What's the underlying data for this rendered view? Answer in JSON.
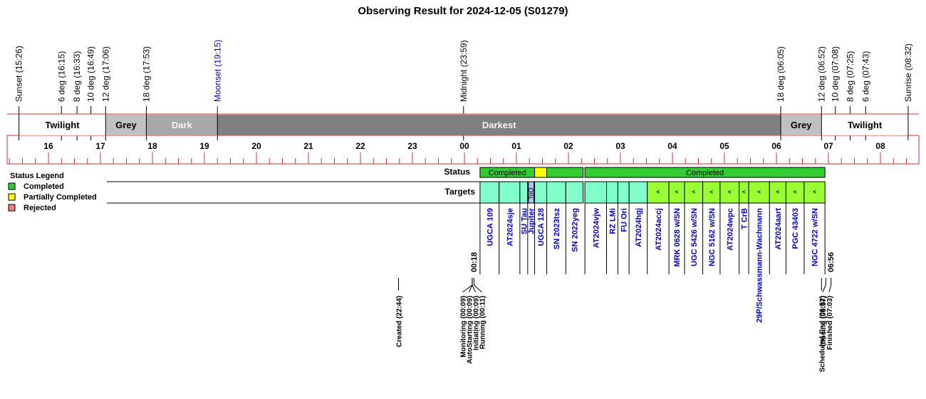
{
  "title": "Observing Result for 2024-12-05 (S01279)",
  "colors": {
    "rule": "#cc3333",
    "twilight": "#ffffff",
    "grey": "#c0c0c0",
    "dark": "#a8a8a8",
    "darkest": "#808080",
    "completed": "#33cc33",
    "partial": "#ffff00",
    "rejected": "#f08080",
    "target_cell": "#80ffcc",
    "target_alt": "#99ff33",
    "too_cell": "#a0c8ff",
    "moon": "#0000cc",
    "target_text": "#0000cc"
  },
  "legend": {
    "title": "Status Legend",
    "items": [
      {
        "label": "Completed",
        "color": "#33cc33"
      },
      {
        "label": "Partially Completed",
        "color": "#ffff00"
      },
      {
        "label": "Rejected",
        "color": "#f08080"
      }
    ]
  },
  "row_labels": {
    "status": "Status",
    "targets": "Targets"
  },
  "chart_data": {
    "type": "timeline",
    "x_start": "15:26",
    "x_end": "08:44",
    "hour_ticks": [
      "16",
      "17",
      "18",
      "19",
      "20",
      "21",
      "22",
      "23",
      "00",
      "01",
      "02",
      "03",
      "04",
      "05",
      "06",
      "07",
      "08"
    ],
    "events": [
      {
        "label": "Sunset (15:26)",
        "time": "15:26"
      },
      {
        "label": "6 deg (16:15)",
        "time": "16:15"
      },
      {
        "label": "8 deg (16:33)",
        "time": "16:33"
      },
      {
        "label": "10 deg (16:49)",
        "time": "16:49"
      },
      {
        "label": "12 deg (17:06)",
        "time": "17:06"
      },
      {
        "label": "18 deg (17:53)",
        "time": "17:53"
      },
      {
        "label": "Moonset (19:15)",
        "time": "19:15",
        "moon": true
      },
      {
        "label": "Midnight (23:59)",
        "time": "23:59"
      },
      {
        "label": "18 deg (06:05)",
        "time": "06:05"
      },
      {
        "label": "12 deg (06:52)",
        "time": "06:52"
      },
      {
        "label": "10 deg (07:08)",
        "time": "07:08"
      },
      {
        "label": "8 deg (07:25)",
        "time": "07:25"
      },
      {
        "label": "6 deg (07:43)",
        "time": "07:43"
      },
      {
        "label": "Sunrise (08:32)",
        "time": "08:32"
      }
    ],
    "sky_bands": [
      {
        "label": "Twilight",
        "start": "15:26",
        "end": "17:06",
        "kind": "twilight"
      },
      {
        "label": "Grey",
        "start": "17:06",
        "end": "17:53",
        "kind": "grey"
      },
      {
        "label": "Dark",
        "start": "17:53",
        "end": "19:15",
        "kind": "dark"
      },
      {
        "label": "Darkest",
        "start": "19:15",
        "end": "06:05",
        "kind": "darkest"
      },
      {
        "label": "Grey",
        "start": "06:05",
        "end": "06:52",
        "kind": "grey"
      },
      {
        "label": "Twilight",
        "start": "06:52",
        "end": "08:32",
        "kind": "twilight"
      }
    ],
    "status_segments": [
      {
        "start": "00:18",
        "end": "01:21",
        "status": "Completed",
        "label": "Completed"
      },
      {
        "start": "01:21",
        "end": "01:35",
        "status": "Partially Completed",
        "label": ""
      },
      {
        "start": "01:35",
        "end": "02:17",
        "status": "Completed",
        "label": ""
      },
      {
        "start": "02:19",
        "end": "06:56",
        "status": "Completed",
        "label": "Completed"
      }
    ],
    "targets": [
      {
        "name": "UGCA 109",
        "start": "00:18",
        "end": "00:40"
      },
      {
        "name": "AT2024sje",
        "start": "00:40",
        "end": "01:04"
      },
      {
        "name": "SU Tau",
        "start": "01:04",
        "end": "01:13"
      },
      {
        "name": "Jupiter",
        "start": "01:13",
        "end": "01:21",
        "too": true,
        "badge": "ToO"
      },
      {
        "name": "UGCA 128",
        "start": "01:21",
        "end": "01:35"
      },
      {
        "name": "SN 2023tsz",
        "start": "01:35",
        "end": "01:57"
      },
      {
        "name": "SN 2022yeg",
        "start": "01:57",
        "end": "02:17"
      },
      {
        "name": "AT2024vjw",
        "start": "02:19",
        "end": "02:44"
      },
      {
        "name": "RZ LMi",
        "start": "02:44",
        "end": "02:57"
      },
      {
        "name": "FU Ori",
        "start": "02:57",
        "end": "03:10"
      },
      {
        "name": "AT2024hgj",
        "start": "03:10",
        "end": "03:31"
      },
      {
        "name": "AT2024accj",
        "start": "03:31",
        "end": "03:56",
        "alt": true
      },
      {
        "name": "MRK 0628 w/SN",
        "start": "03:56",
        "end": "04:14",
        "alt": true
      },
      {
        "name": "UGC 5426 w/SN",
        "start": "04:14",
        "end": "04:35",
        "alt": true
      },
      {
        "name": "NGC 5162 w/SN",
        "start": "04:35",
        "end": "04:55",
        "alt": true
      },
      {
        "name": "AT2024wpc",
        "start": "04:55",
        "end": "05:17",
        "alt": true
      },
      {
        "name": "T CrB",
        "start": "05:17",
        "end": "05:28",
        "alt": true
      },
      {
        "name": "29P/Schwassmann-Wachmann",
        "start": "05:28",
        "end": "05:52",
        "alt": true
      },
      {
        "name": "AT2024aart",
        "start": "05:52",
        "end": "06:11",
        "alt": true
      },
      {
        "name": "PGC 43403",
        "start": "06:11",
        "end": "06:32",
        "alt": true
      },
      {
        "name": "NGC 4722 w/SN",
        "start": "06:32",
        "end": "06:56",
        "alt": true
      }
    ],
    "time_marks": [
      {
        "label": "00:18",
        "time": "00:18"
      },
      {
        "label": "06:56",
        "time": "06:56"
      }
    ],
    "milestones": [
      {
        "label": "Created (22:44)",
        "time": "22:44"
      },
      {
        "label": "Monitoring (00:09)",
        "time": "00:09"
      },
      {
        "label": "AutoStarting (00:09)",
        "time": "00:09"
      },
      {
        "label": "Initiating (00:09)",
        "time": "00:09"
      },
      {
        "label": "Running (00:11)",
        "time": "00:11"
      },
      {
        "label": "Scheduled End (06:52)",
        "time": "06:52"
      },
      {
        "label": "Closing (06:57)",
        "time": "06:57"
      },
      {
        "label": "Finished (07:03)",
        "time": "07:03"
      }
    ]
  }
}
